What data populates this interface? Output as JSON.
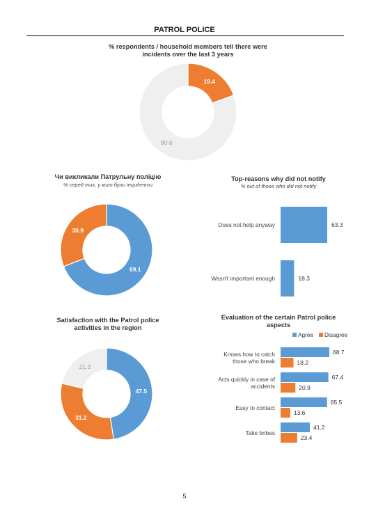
{
  "header": {
    "title": "PATROL POLICE"
  },
  "page_number": "5",
  "colors": {
    "blue": "#5B9BD5",
    "orange": "#ED7D31",
    "grey": "#EFEFEF"
  },
  "chart_data": [
    {
      "type": "pie",
      "title_line1": "% respondents / household members tell there were",
      "title_line2": "incidents over the last 3 years",
      "slices": [
        {
          "label": "19.4",
          "value": 19.4,
          "color": "#ED7D31"
        },
        {
          "label": "80.6",
          "value": 80.6,
          "color": "#EFEFEF"
        }
      ]
    },
    {
      "type": "pie",
      "title": "Чи викликали Патрульну поліцію",
      "subtitle": "% серед тих, у кого були інциденти",
      "slices": [
        {
          "label": "69.1",
          "value": 69.1,
          "color": "#5B9BD5"
        },
        {
          "label": "30.9",
          "value": 30.9,
          "color": "#ED7D31"
        }
      ]
    },
    {
      "type": "bar",
      "title": "Top-reasons why did not notify",
      "subtitle": "% out of those who did not notify",
      "categories": [
        "Does not help anyway",
        "Wasn't important enough"
      ],
      "values": [
        63.3,
        18.3
      ],
      "color": "#5B9BD5"
    },
    {
      "type": "pie",
      "title_line1": "Satisfaction with the Patrol police",
      "title_line2": "activities in the region",
      "slices": [
        {
          "label": "47.5",
          "value": 47.5,
          "color": "#5B9BD5"
        },
        {
          "label": "31.2",
          "value": 31.2,
          "color": "#ED7D31"
        },
        {
          "label": "21.3",
          "value": 21.3,
          "color": "#EFEFEF"
        }
      ]
    },
    {
      "type": "bar",
      "title_line1": "Evaluation of the certain Patrol police",
      "title_line2": "aspects",
      "legend": [
        "Agree",
        "Disagree"
      ],
      "categories": [
        [
          "Knows how to catch",
          "those who break"
        ],
        [
          "Acts quickly in case of",
          "accidents"
        ],
        [
          "Easy to contact"
        ],
        [
          "Take bribes"
        ]
      ],
      "series": [
        {
          "name": "Agree",
          "values": [
            68.7,
            67.4,
            65.5,
            41.2
          ],
          "color": "#5B9BD5"
        },
        {
          "name": "Disagree",
          "values": [
            18.2,
            20.9,
            13.6,
            23.4
          ],
          "color": "#ED7D31"
        }
      ]
    }
  ]
}
